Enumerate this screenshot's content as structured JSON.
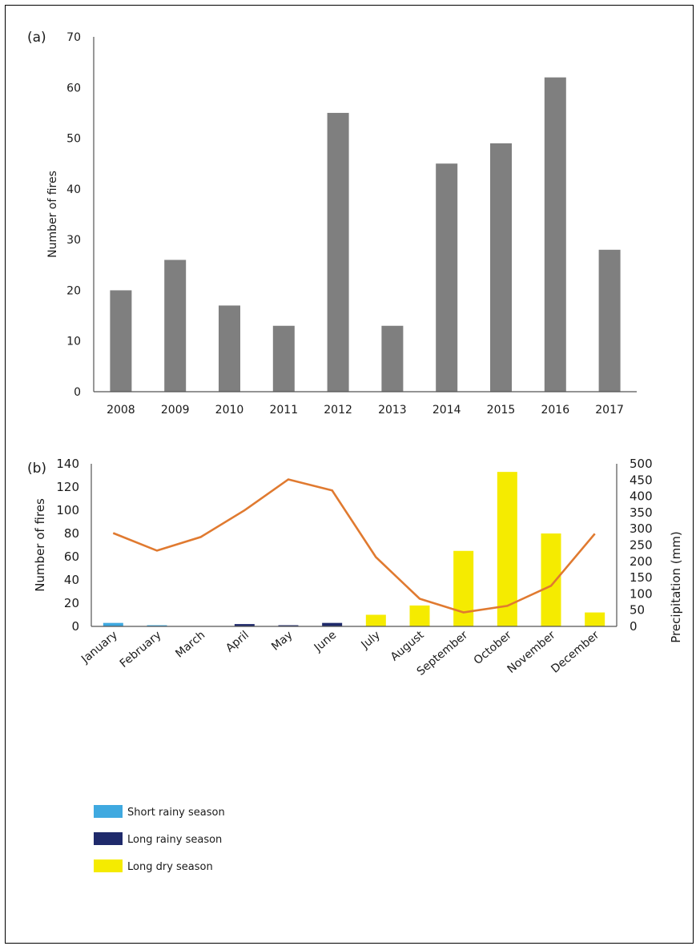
{
  "chart_data": [
    {
      "type": "bar",
      "panel_label": "(a)",
      "title": "",
      "xlabel": "",
      "ylabel": "Number of fires",
      "ylim": [
        0,
        70
      ],
      "yticks": [
        0,
        10,
        20,
        30,
        40,
        50,
        60,
        70
      ],
      "grid": false,
      "categories": [
        "2008",
        "2009",
        "2010",
        "2011",
        "2012",
        "2013",
        "2014",
        "2015",
        "2016",
        "2017"
      ],
      "values": [
        20,
        26,
        17,
        13,
        55,
        13,
        45,
        49,
        62,
        28
      ],
      "colors": {
        "bar": "#7f7f7f"
      }
    },
    {
      "type": "bar",
      "panel_label": "(b)",
      "title": "",
      "xlabel": "",
      "ylabel": "Number of fires",
      "ylabel_right": "Precipitation (mm)",
      "ylim": [
        0,
        140
      ],
      "ylim_right": [
        0,
        500
      ],
      "yticks": [
        0,
        20,
        40,
        60,
        80,
        100,
        120,
        140
      ],
      "yticks_right": [
        0,
        50,
        100,
        150,
        200,
        250,
        300,
        350,
        400,
        450,
        500
      ],
      "grid": false,
      "legend_position": "bottom-left",
      "categories": [
        "January",
        "February",
        "March",
        "April",
        "May",
        "June",
        "July",
        "August",
        "September",
        "October",
        "November",
        "December"
      ],
      "fires": [
        3,
        1,
        0,
        2,
        1,
        3,
        10,
        18,
        65,
        133,
        80,
        12
      ],
      "season": [
        "short",
        "short",
        "long_rainy",
        "long_rainy",
        "long_rainy",
        "long_rainy",
        "dry",
        "dry",
        "dry",
        "dry",
        "dry",
        "dry"
      ],
      "precipitation": [
        287,
        233,
        275,
        357,
        452,
        418,
        213,
        85,
        43,
        63,
        125,
        285
      ],
      "legend": [
        {
          "key": "short",
          "label": "Short rainy season",
          "color": "#3fa9e0"
        },
        {
          "key": "long_rainy",
          "label": "Long rainy season",
          "color": "#1f2a6b"
        },
        {
          "key": "dry",
          "label": "Long dry season",
          "color": "#f5eb00"
        }
      ],
      "colors": {
        "line": "#e07a30",
        "axis": "#555555"
      }
    }
  ]
}
